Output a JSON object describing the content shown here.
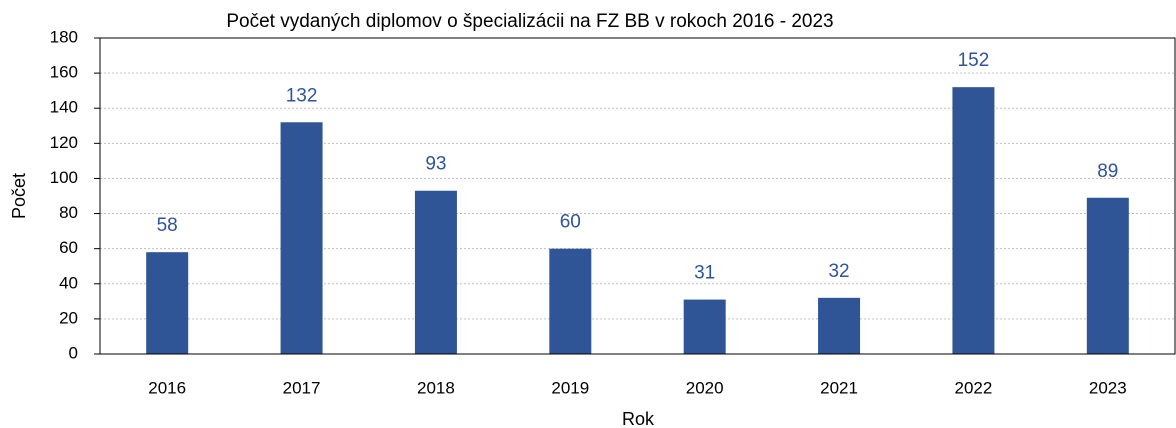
{
  "chart_data": {
    "type": "bar",
    "title": "Počet vydaných diplomov o špecializácii na FZ BB v rokoch 2016 - 2023",
    "xlabel": "Rok",
    "ylabel": "Počet",
    "categories": [
      "2016",
      "2017",
      "2018",
      "2019",
      "2020",
      "2021",
      "2022",
      "2023"
    ],
    "values": [
      58,
      132,
      93,
      60,
      31,
      32,
      152,
      89
    ],
    "color": "#2f5597",
    "ylim": [
      0,
      180
    ],
    "yticks": [
      0,
      20,
      40,
      60,
      80,
      100,
      120,
      140,
      160,
      180
    ],
    "grid": true
  }
}
